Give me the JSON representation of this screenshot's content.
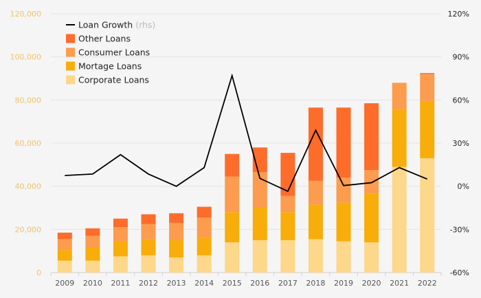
{
  "chart_data": {
    "type": "bar",
    "subtype": "stacked-bar-with-line",
    "categories": [
      "2009",
      "2010",
      "2011",
      "2012",
      "2013",
      "2014",
      "2015",
      "2016",
      "2017",
      "2018",
      "2019",
      "2020",
      "2021",
      "2022"
    ],
    "series": [
      {
        "name": "Corporate Loans",
        "color": "#fdd78a",
        "values": [
          5500,
          5500,
          7500,
          8000,
          7000,
          8000,
          14000,
          15000,
          15000,
          15500,
          14500,
          14000,
          49000,
          53000
        ]
      },
      {
        "name": "Mortage Loans",
        "color": "#f9ad0a",
        "values": [
          5000,
          6000,
          7000,
          7500,
          8000,
          8000,
          14000,
          15000,
          13000,
          16000,
          18000,
          22500,
          26500,
          26500
        ]
      },
      {
        "name": "Consumer Loans",
        "color": "#fd9c4e",
        "values": [
          5000,
          5500,
          6500,
          7000,
          8000,
          9500,
          16500,
          16500,
          7500,
          11000,
          11500,
          11000,
          12500,
          12500
        ]
      },
      {
        "name": "Other Loans",
        "color": "#fe6c2b",
        "values": [
          3000,
          3500,
          4000,
          4500,
          4500,
          5000,
          10500,
          11500,
          20000,
          34000,
          32500,
          31000,
          0,
          500
        ]
      }
    ],
    "line_series": {
      "name": "Loan Growth",
      "axis": "right",
      "color": "#000000",
      "values": [
        7.5,
        8.5,
        22,
        8.5,
        0,
        13,
        77,
        5.5,
        -3.5,
        39,
        0.5,
        2.5,
        13,
        5
      ]
    },
    "left_axis": {
      "min": 0,
      "max": 120000,
      "ticks": [
        "0",
        "20,000",
        "40,000",
        "60,000",
        "80,000",
        "100,000",
        "120,000"
      ],
      "color": "#f2c26a"
    },
    "right_axis": {
      "min": -60,
      "max": 120,
      "unit": "%",
      "ticks": [
        "-60%",
        "-30%",
        "0%",
        "30%",
        "60%",
        "90%",
        "120%"
      ]
    },
    "legend": {
      "position": "top-left",
      "items": [
        {
          "label": "Loan Growth",
          "suffix": "(rhs)",
          "kind": "line",
          "color": "#000000"
        },
        {
          "label": "Other Loans",
          "kind": "box",
          "color": "#fe6c2b"
        },
        {
          "label": "Consumer Loans",
          "kind": "box",
          "color": "#fd9c4e"
        },
        {
          "label": "Mortage Loans",
          "kind": "box",
          "color": "#f9ad0a"
        },
        {
          "label": "Corporate Loans",
          "kind": "box",
          "color": "#fdd78a"
        }
      ]
    },
    "grid": true
  }
}
